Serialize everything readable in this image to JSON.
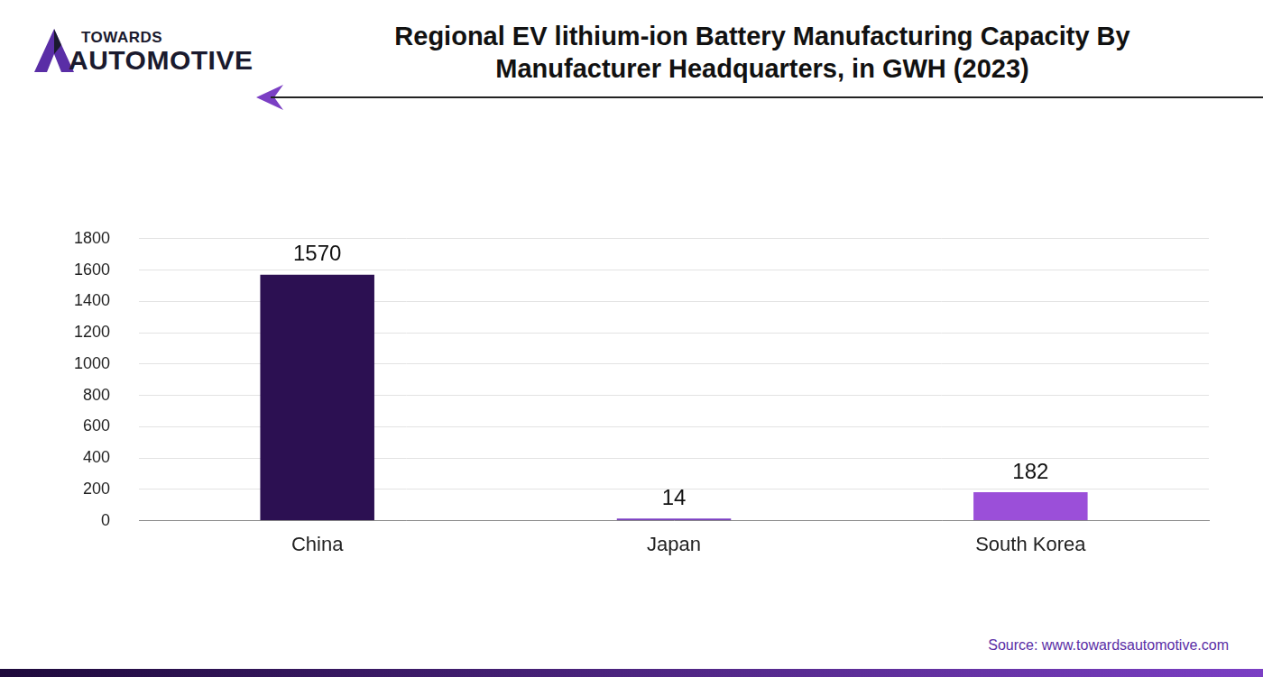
{
  "chart_data": {
    "type": "bar",
    "title": [
      "Regional EV lithium-ion Battery Manufacturing Capacity By",
      "Manufacturer Headquarters, in GWH  (2023)"
    ],
    "logo": {
      "top": "TOWARDS",
      "bottom": "AUTOMOTIVE"
    },
    "source": "Source: www.towardsautomotive.com",
    "categories": [
      "China",
      "Japan",
      "South Korea"
    ],
    "values": [
      1570,
      14,
      182
    ],
    "colors": [
      "#2c1052",
      "#7a3cc2",
      "#9b4fd9"
    ],
    "ylim": [
      0,
      1800
    ],
    "yticks": [
      0,
      200,
      400,
      600,
      800,
      1000,
      1200,
      1400,
      1600,
      1800
    ],
    "grid": true,
    "data_labels": true
  }
}
